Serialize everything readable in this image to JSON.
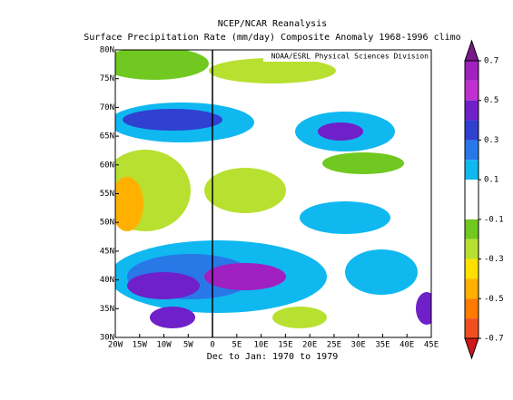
{
  "header": {
    "line1": "NCEP/NCAR Reanalysis",
    "line2": "Surface Precipitation Rate (mm/day) Composite Anomaly 1968-1996 climo"
  },
  "map": {
    "credit": "NOAA/ESRL Physical Sciences Division",
    "lon_labels": [
      "20W",
      "15W",
      "10W",
      "5W",
      "0",
      "5E",
      "10E",
      "15E",
      "20E",
      "25E",
      "30E",
      "35E",
      "40E",
      "45E"
    ],
    "lat_labels": [
      "30N",
      "35N",
      "40N",
      "45N",
      "50N",
      "55N",
      "60N",
      "65N",
      "70N",
      "75N",
      "80N"
    ],
    "footer": "Dec to Jan: 1970 to 1979"
  },
  "colorbar": {
    "labels": [
      "0.7",
      "0.5",
      "0.3",
      "0.1",
      "-0.1",
      "-0.3",
      "-0.5",
      "-0.7"
    ],
    "colors": [
      "#7a1a8a",
      "#a020c0",
      "#c030d0",
      "#7020c8",
      "#3040d0",
      "#2878e8",
      "#10b8f0",
      "#ffffff",
      "#ffffff",
      "#70c820",
      "#b8e030",
      "#ffe000",
      "#ffb000",
      "#ff7a00",
      "#f05020",
      "#d01818"
    ]
  }
}
